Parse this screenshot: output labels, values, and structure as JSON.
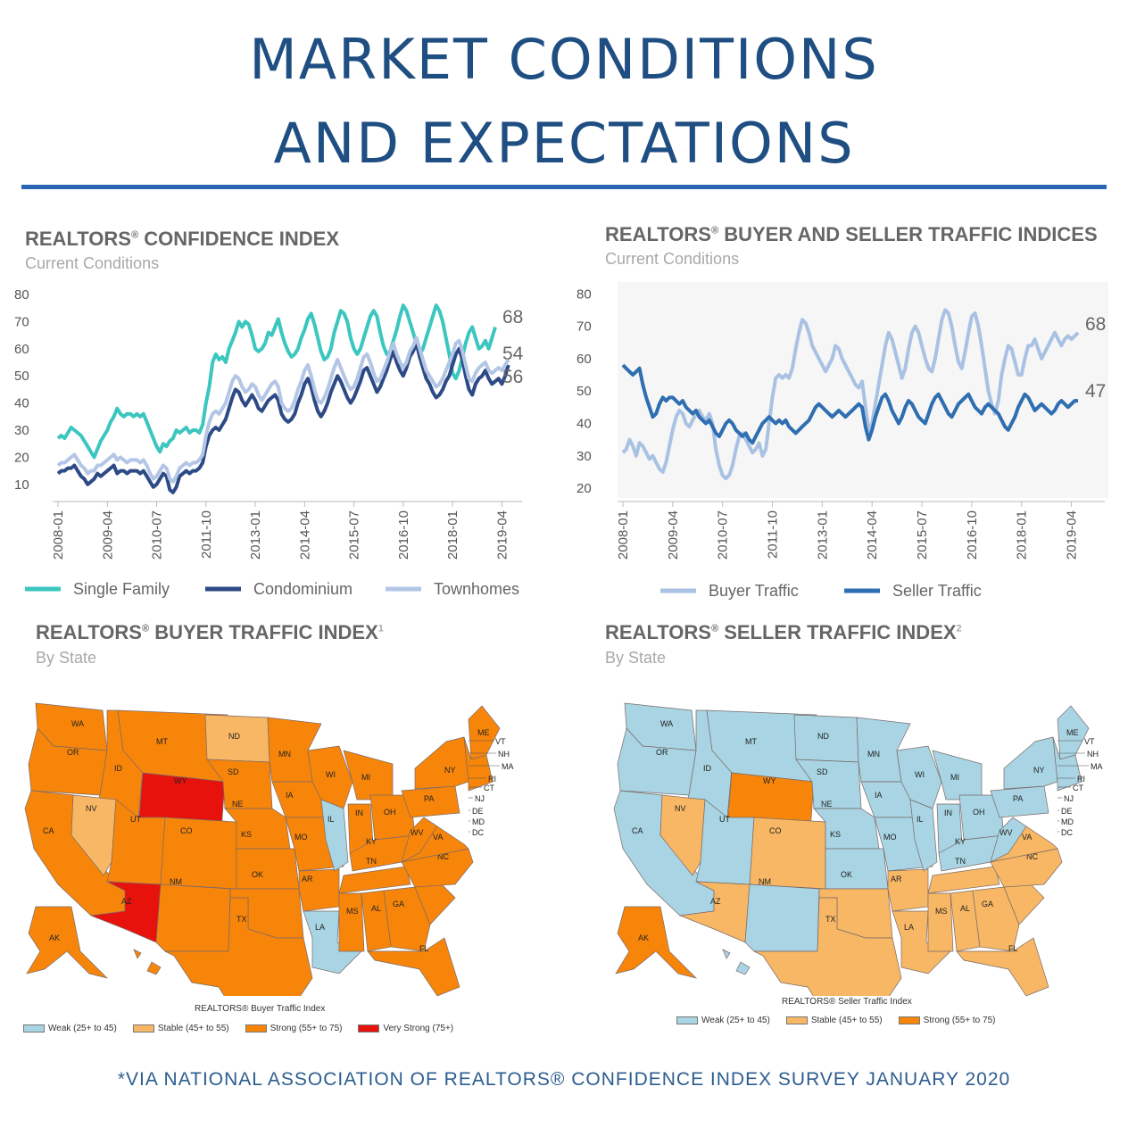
{
  "header": {
    "title_line1": "MARKET CONDITIONS",
    "title_line2": "AND EXPECTATIONS"
  },
  "footer": {
    "source": "*VIA NATIONAL ASSOCIATION OF REALTORS® CONFIDENCE INDEX SURVEY JANUARY 2020"
  },
  "colors": {
    "title": "#1f4e82",
    "single_family": "#3cc6c0",
    "condominium": "#2e4a86",
    "townhomes": "#b3c6e6",
    "buyer_traffic": "#a9c2e3",
    "seller_traffic": "#2f6eb0",
    "weak": "#a8d4e3",
    "stable": "#f7b764",
    "strong": "#f7850a",
    "very_strong": "#e8120c"
  },
  "panels": {
    "confidence": {
      "title": "REALTORS",
      "title_rest": " CONFIDENCE INDEX",
      "subtitle": "Current Conditions"
    },
    "traffic": {
      "title": "REALTORS",
      "title_rest": " BUYER AND SELLER TRAFFIC INDICES",
      "subtitle": "Current Conditions"
    },
    "buyer_map": {
      "title": "REALTORS",
      "title_rest": " BUYER TRAFFIC INDEX",
      "footnote": "1",
      "subtitle": "By State",
      "caption": "REALTORS® Buyer Traffic Index",
      "legend": [
        "Weak (25+ to 45)",
        "Stable (45+ to 55)",
        "Strong (55+ to 75)",
        "Very Strong (75+)"
      ],
      "legend_colors": [
        "#a8d4e3",
        "#f7b764",
        "#f7850a",
        "#e8120c"
      ]
    },
    "seller_map": {
      "title": "REALTORS",
      "title_rest": " SELLER TRAFFIC INDEX",
      "footnote": "2",
      "subtitle": "By State",
      "caption": "REALTORS® Seller Traffic Index",
      "legend": [
        "Weak (25+ to 45)",
        "Stable (45+ to 55)",
        "Strong (55+ to 75)"
      ],
      "legend_colors": [
        "#a8d4e3",
        "#f7b764",
        "#f7850a"
      ]
    }
  },
  "chart_data": [
    {
      "type": "line",
      "title": "REALTORS® CONFIDENCE INDEX",
      "subtitle": "Current Conditions",
      "ylim": [
        5,
        80
      ],
      "yticks": [
        10,
        20,
        30,
        40,
        50,
        60,
        70,
        80
      ],
      "x_start": "2008-01",
      "x_end": "2019-12",
      "xticks": [
        "2008-01",
        "2009-04",
        "2010-07",
        "2011-10",
        "2013-01",
        "2014-04",
        "2015-07",
        "2016-10",
        "2018-01",
        "2019-04"
      ],
      "legend_position": "bottom",
      "series": [
        {
          "name": "Single Family",
          "color": "#3cc6c0",
          "end_label": "68",
          "values": [
            27,
            28,
            27,
            29,
            31,
            30,
            29,
            28,
            26,
            24,
            22,
            20,
            23,
            26,
            28,
            30,
            33,
            35,
            38,
            36,
            35,
            36,
            36,
            35,
            36,
            35,
            36,
            33,
            30,
            27,
            24,
            22,
            25,
            24,
            26,
            27,
            30,
            29,
            30,
            31,
            29,
            30,
            30,
            29,
            32,
            40,
            46,
            55,
            58,
            56,
            57,
            55,
            60,
            63,
            66,
            70,
            68,
            70,
            69,
            65,
            60,
            59,
            60,
            62,
            66,
            65,
            68,
            71,
            66,
            62,
            59,
            57,
            58,
            60,
            64,
            67,
            71,
            73,
            69,
            64,
            59,
            56,
            57,
            60,
            66,
            70,
            74,
            73,
            70,
            64,
            60,
            58,
            60,
            64,
            68,
            72,
            74,
            72,
            66,
            61,
            58,
            59,
            63,
            67,
            72,
            76,
            74,
            70,
            66,
            62,
            58,
            60,
            64,
            68,
            72,
            76,
            74,
            70,
            64,
            58,
            51,
            49,
            52,
            57,
            62,
            66,
            68,
            64,
            60,
            61,
            63,
            60,
            64,
            68
          ]
        },
        {
          "name": "Condominium",
          "color": "#2e4a86",
          "end_label": "54",
          "values": [
            14,
            15,
            15,
            16,
            16,
            17,
            15,
            13,
            12,
            10,
            11,
            12,
            14,
            13,
            14,
            15,
            16,
            17,
            14,
            15,
            15,
            14,
            15,
            15,
            15,
            14,
            15,
            13,
            11,
            9,
            10,
            12,
            14,
            13,
            8,
            7,
            9,
            13,
            14,
            15,
            14,
            15,
            15,
            16,
            18,
            24,
            28,
            30,
            31,
            30,
            32,
            34,
            38,
            42,
            45,
            44,
            41,
            39,
            41,
            43,
            41,
            38,
            37,
            39,
            41,
            42,
            43,
            41,
            36,
            34,
            33,
            34,
            36,
            40,
            43,
            47,
            49,
            46,
            41,
            37,
            35,
            37,
            40,
            44,
            47,
            50,
            48,
            45,
            42,
            40,
            42,
            45,
            48,
            52,
            53,
            50,
            47,
            44,
            46,
            49,
            52,
            56,
            59,
            55,
            52,
            50,
            53,
            57,
            59,
            62,
            57,
            53,
            49,
            47,
            44,
            42,
            43,
            45,
            48,
            50,
            54,
            58,
            60,
            56,
            50,
            45,
            43,
            47,
            49,
            50,
            52,
            49,
            47,
            48,
            49,
            47,
            50,
            54
          ]
        },
        {
          "name": "Townhomes",
          "color": "#b3c6e6",
          "end_label": "56",
          "values": [
            17,
            18,
            18,
            19,
            20,
            21,
            19,
            17,
            16,
            14,
            15,
            15,
            17,
            17,
            18,
            19,
            20,
            21,
            19,
            20,
            19,
            18,
            19,
            19,
            19,
            18,
            19,
            17,
            14,
            12,
            13,
            15,
            17,
            16,
            12,
            11,
            13,
            16,
            17,
            18,
            17,
            18,
            18,
            19,
            21,
            28,
            33,
            36,
            37,
            36,
            38,
            40,
            44,
            48,
            50,
            49,
            46,
            44,
            45,
            47,
            46,
            43,
            41,
            43,
            45,
            47,
            48,
            46,
            40,
            38,
            37,
            38,
            41,
            45,
            48,
            52,
            54,
            50,
            45,
            41,
            40,
            42,
            45,
            49,
            53,
            56,
            53,
            50,
            47,
            45,
            46,
            49,
            53,
            57,
            58,
            55,
            51,
            48,
            49,
            52,
            55,
            59,
            62,
            58,
            55,
            53,
            55,
            59,
            61,
            64,
            60,
            56,
            52,
            50,
            48,
            46,
            47,
            49,
            52,
            55,
            58,
            62,
            63,
            59,
            54,
            49,
            48,
            51,
            53,
            54,
            55,
            52,
            51,
            52,
            53,
            52,
            54,
            56
          ]
        }
      ]
    },
    {
      "type": "line",
      "title": "REALTORS® BUYER AND SELLER TRAFFIC INDICES",
      "subtitle": "Current Conditions",
      "ylim": [
        17,
        82
      ],
      "yticks": [
        20,
        30,
        40,
        50,
        60,
        70,
        80
      ],
      "x_start": "2008-01",
      "x_end": "2019-12",
      "xticks": [
        "2008-01",
        "2009-04",
        "2010-07",
        "2011-10",
        "2013-01",
        "2014-04",
        "2015-07",
        "2016-10",
        "2018-01",
        "2019-04"
      ],
      "legend_position": "bottom",
      "series": [
        {
          "name": "Buyer Traffic",
          "color": "#a9c2e3",
          "end_label": "68",
          "values": [
            31,
            32,
            35,
            33,
            30,
            34,
            33,
            31,
            29,
            30,
            28,
            26,
            25,
            28,
            33,
            38,
            42,
            44,
            43,
            40,
            39,
            41,
            43,
            44,
            42,
            41,
            43,
            40,
            32,
            27,
            24,
            23,
            24,
            27,
            32,
            36,
            37,
            35,
            33,
            31,
            32,
            34,
            30,
            32,
            40,
            48,
            54,
            55,
            54,
            55,
            54,
            57,
            63,
            68,
            72,
            71,
            68,
            64,
            62,
            60,
            58,
            56,
            58,
            60,
            64,
            63,
            60,
            58,
            56,
            54,
            52,
            51,
            53,
            45,
            38,
            40,
            46,
            52,
            58,
            64,
            68,
            66,
            62,
            58,
            54,
            57,
            63,
            68,
            70,
            68,
            64,
            60,
            57,
            56,
            60,
            66,
            72,
            75,
            74,
            70,
            64,
            59,
            57,
            62,
            68,
            73,
            74,
            70,
            64,
            57,
            50,
            46,
            43,
            47,
            55,
            60,
            64,
            63,
            59,
            55,
            55,
            60,
            64,
            64,
            66,
            63,
            60,
            62,
            64,
            66,
            68,
            66,
            64,
            66,
            67,
            66,
            67,
            68
          ]
        },
        {
          "name": "Seller Traffic",
          "color": "#2f6eb0",
          "end_label": "47",
          "values": [
            58,
            57,
            56,
            55,
            56,
            57,
            52,
            48,
            45,
            42,
            43,
            46,
            48,
            47,
            48,
            48,
            47,
            46,
            47,
            45,
            44,
            43,
            44,
            42,
            41,
            40,
            41,
            39,
            37,
            36,
            38,
            40,
            41,
            40,
            38,
            37,
            36,
            37,
            35,
            34,
            36,
            38,
            40,
            41,
            42,
            41,
            40,
            41,
            40,
            41,
            39,
            38,
            37,
            38,
            39,
            40,
            41,
            43,
            45,
            46,
            45,
            44,
            43,
            42,
            43,
            44,
            43,
            42,
            43,
            44,
            45,
            46,
            45,
            39,
            35,
            38,
            42,
            45,
            48,
            49,
            47,
            44,
            42,
            40,
            42,
            45,
            47,
            46,
            44,
            42,
            41,
            40,
            43,
            46,
            48,
            49,
            47,
            45,
            43,
            42,
            44,
            46,
            47,
            48,
            49,
            47,
            45,
            44,
            43,
            45,
            46,
            45,
            44,
            43,
            41,
            39,
            38,
            40,
            42,
            45,
            47,
            49,
            48,
            46,
            44,
            45,
            46,
            45,
            44,
            43,
            44,
            46,
            47,
            46,
            45,
            46,
            47,
            47
          ]
        }
      ]
    }
  ]
}
